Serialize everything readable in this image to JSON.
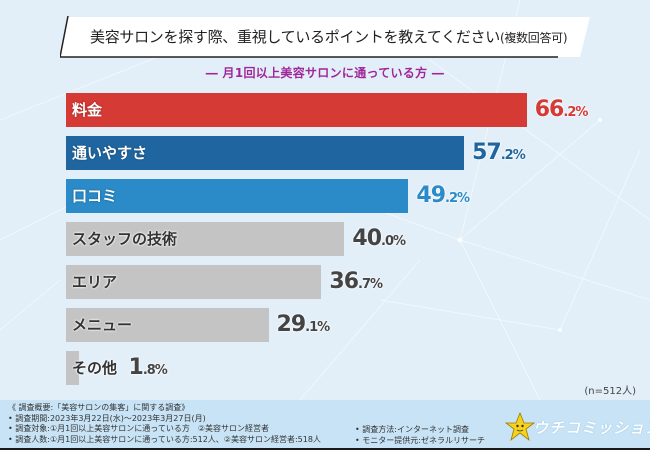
{
  "title": {
    "main": "美容サロンを探す際、重視しているポイントを教えてください",
    "suffix": "(複数回答可)"
  },
  "subtitle": "― 月1回以上美容サロンに通っている方 ―",
  "chart_data": {
    "type": "bar",
    "orientation": "horizontal",
    "title": "美容サロンを探す際、重視しているポイントを教えてください(複数回答可)",
    "subtitle": "月1回以上美容サロンに通っている方",
    "categories": [
      "料金",
      "通いやすさ",
      "口コミ",
      "スタッフの技術",
      "エリア",
      "メニュー",
      "その他"
    ],
    "values": [
      66.2,
      57.2,
      49.2,
      40.0,
      36.7,
      29.1,
      1.8
    ],
    "unit": "%",
    "bar_colors": [
      "#d63a34",
      "#1f66a0",
      "#2a8bc8",
      "#c4c4c4",
      "#c4c4c4",
      "#c4c4c4",
      "#c4c4c4"
    ],
    "value_colors": [
      "#d63a34",
      "#1f66a0",
      "#2a8bc8",
      "#444444",
      "#444444",
      "#444444",
      "#444444"
    ],
    "label_colors": [
      "#ffffff",
      "#ffffff",
      "#ffffff",
      "#333333",
      "#333333",
      "#333333",
      "#333333"
    ],
    "xlim": [
      0,
      100
    ],
    "grid": false,
    "sample_note": "(n=512人)"
  },
  "footer": {
    "left_lines": [
      "《 調査概要:「美容サロンの集客」に関する調査》",
      "• 調査期間:2023年3月22日(水)〜2023年3月27日(月)",
      "• 調査対象:①月1回以上美容サロンに通っている方　②美容サロン経営者",
      "• 調査人数:①月1回以上美容サロンに通っている方:512人、②美容サロン経営者:518人"
    ],
    "right_lines": [
      "• 調査方法:インターネット調査",
      "• モニター提供元:ゼネラルリサーチ"
    ],
    "logo_text": "ウチコミッション",
    "logo_icon": "star-mascot-icon"
  }
}
